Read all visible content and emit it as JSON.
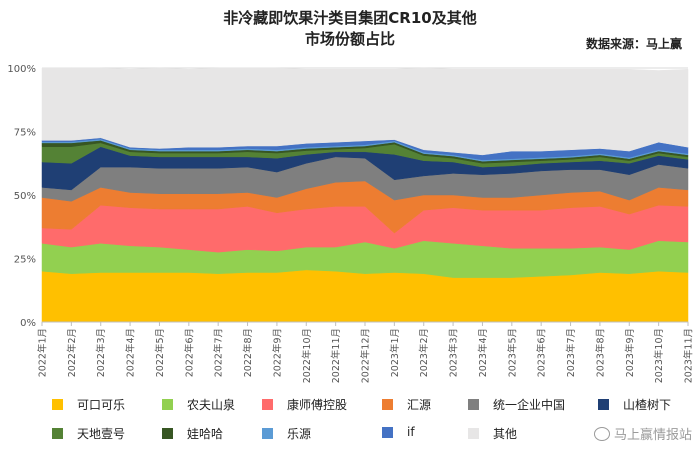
{
  "title_line1": "非冷藏即饮果汁类目集团CR10及其他",
  "title_line2": "市场份额占比",
  "source": "数据来源：马上赢",
  "watermark": "马上赢情报站",
  "chart_data": {
    "type": "area",
    "stacked": true,
    "title": "非冷藏即饮果汁类目集团CR10及其他 市场份额占比",
    "x": [
      "2022年1月",
      "2022年2月",
      "2022年3月",
      "2022年4月",
      "2022年5月",
      "2022年6月",
      "2022年7月",
      "2022年8月",
      "2022年9月",
      "2022年10月",
      "2022年11月",
      "2022年12月",
      "2023年1月",
      "2023年2月",
      "2023年3月",
      "2023年4月",
      "2023年5月",
      "2023年6月",
      "2023年7月",
      "2023年8月",
      "2023年9月",
      "2023年10月",
      "2023年11月"
    ],
    "yticks": [
      "0%",
      "25%",
      "50%",
      "75%",
      "100%"
    ],
    "ylim": [
      0,
      100
    ],
    "grid": true,
    "legend_position": "bottom",
    "series": [
      {
        "name": "可口可乐",
        "color": "#FFC000",
        "values": [
          20,
          19,
          19.5,
          19.5,
          19.5,
          19.5,
          19,
          19.5,
          19.5,
          20.5,
          20,
          19,
          19.5,
          19,
          17.5,
          17.5,
          17.5,
          18,
          18.5,
          19.5,
          19,
          20,
          19.5
        ]
      },
      {
        "name": "农夫山泉",
        "color": "#92D050",
        "values": [
          11,
          10.5,
          11.5,
          10.5,
          10,
          9,
          8.5,
          9,
          8.5,
          9,
          9.5,
          12.5,
          9.5,
          13,
          13.5,
          12.5,
          11.5,
          11,
          10.5,
          10,
          9.5,
          12,
          12
        ]
      },
      {
        "name": "康师傅控股",
        "color": "#FF6B6B",
        "values": [
          6,
          7,
          15,
          15,
          15,
          16,
          17,
          17,
          15,
          15,
          16,
          14,
          6,
          12,
          14,
          14,
          15,
          15,
          16,
          16,
          14,
          14,
          14
        ]
      },
      {
        "name": "汇源",
        "color": "#ED7D31",
        "values": [
          12,
          11,
          7,
          6,
          6,
          6,
          6,
          5.5,
          6,
          8,
          9.5,
          10,
          13,
          6,
          5,
          5,
          5,
          6,
          6,
          6,
          5.5,
          7,
          6.5
        ]
      },
      {
        "name": "统一企业中国",
        "color": "#7F7F7F",
        "values": [
          4,
          4.5,
          8,
          10,
          10,
          10,
          10,
          10,
          10,
          10,
          10,
          9,
          8,
          7.5,
          8.5,
          9,
          9.5,
          9.5,
          9,
          8.5,
          10,
          9,
          8.5
        ]
      },
      {
        "name": "山楂树下",
        "color": "#1F3F74",
        "values": [
          10,
          10.5,
          8,
          4.5,
          4.5,
          4.5,
          4.5,
          4,
          5.5,
          3.5,
          2,
          2.5,
          10,
          6,
          4.5,
          3,
          3,
          3,
          3,
          3.5,
          4.5,
          3.5,
          3.5
        ]
      },
      {
        "name": "天地壹号",
        "color": "#548235",
        "values": [
          6,
          6.5,
          1.5,
          1.5,
          1.5,
          1.5,
          1.5,
          2,
          2,
          1.5,
          1,
          1.5,
          4,
          2,
          1.5,
          1.5,
          1.5,
          1,
          1,
          1.5,
          1,
          1,
          1
        ]
      },
      {
        "name": "娃哈哈",
        "color": "#375623",
        "values": [
          1.5,
          1.5,
          1,
          0.8,
          0.8,
          0.8,
          0.8,
          0.8,
          0.8,
          0.8,
          0.8,
          0.8,
          0.8,
          0.8,
          0.8,
          0.8,
          0.8,
          0.8,
          0.8,
          0.8,
          0.8,
          0.8,
          0.8
        ]
      },
      {
        "name": "乐源",
        "color": "#5B9BD5",
        "values": [
          0.5,
          0.5,
          0.5,
          0.5,
          0.5,
          0.5,
          0.5,
          0.5,
          0.5,
          0.5,
          0.5,
          0.5,
          0.5,
          0.5,
          0.5,
          0.5,
          0.5,
          0.5,
          0.5,
          0.5,
          0.5,
          0.5,
          0.5
        ]
      },
      {
        "name": "if",
        "color": "#4472C4",
        "values": [
          0.5,
          0.5,
          0.5,
          0.5,
          0.5,
          1,
          1,
          1,
          1.5,
          1.5,
          1.5,
          1.5,
          0.5,
          1,
          1,
          2,
          3,
          2.5,
          2.5,
          2,
          2.5,
          3,
          2.5
        ]
      },
      {
        "name": "其他",
        "color": "#E7E6E6",
        "values": [
          28.5,
          28.5,
          27.5,
          30.7,
          31.7,
          30.7,
          31.2,
          30.7,
          30.7,
          29.2,
          28.7,
          28.2,
          27.7,
          32.2,
          32.7,
          33.7,
          32.2,
          32.2,
          31.7,
          31.2,
          32.2,
          28.2,
          30.7
        ]
      }
    ]
  }
}
